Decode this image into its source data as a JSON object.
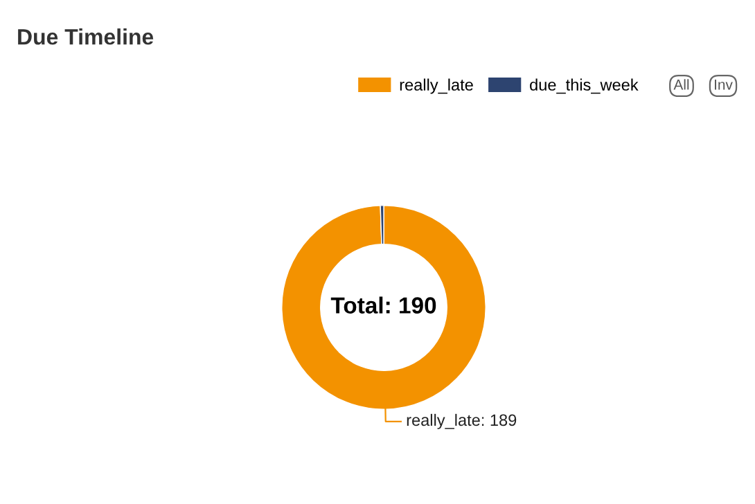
{
  "chart_data": {
    "type": "donut",
    "title": "Due Timeline",
    "categories": [
      "really_late",
      "due_this_week"
    ],
    "values": [
      189,
      1
    ],
    "colors": [
      "#f39200",
      "#2d4470"
    ],
    "value_labels": [
      "really_late: 189",
      null
    ],
    "legend": "top right",
    "annotations": [
      "Total: 190",
      "All",
      "Inv"
    ]
  }
}
